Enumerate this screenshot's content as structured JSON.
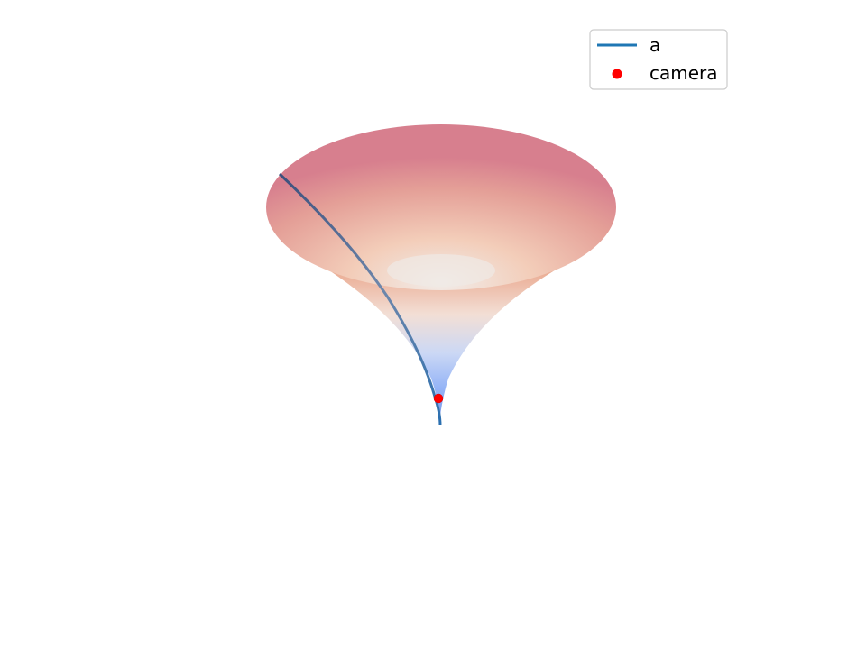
{
  "chart_data": {
    "type": "surface3d",
    "surface": {
      "shape": "funnel",
      "colormap": "coolwarm",
      "colormap_low": "#3b4cc0",
      "colormap_mid": "#f2f0ee",
      "colormap_high": "#b40426",
      "alpha": 0.55
    },
    "series": [
      {
        "name": "a",
        "kind": "line",
        "color": "#1f77b4"
      },
      {
        "name": "camera",
        "kind": "scatter",
        "color": "#ff0000"
      }
    ],
    "legend": {
      "position": "top-right",
      "entries": [
        {
          "label": "a",
          "marker": "line",
          "color": "#1f77b4"
        },
        {
          "label": "camera",
          "marker": "dot",
          "color": "#ff0000"
        }
      ]
    },
    "axes_visible": false,
    "grid": false
  }
}
